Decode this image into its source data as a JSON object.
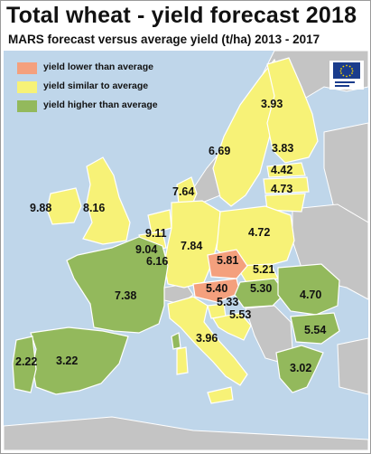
{
  "header": {
    "title": "Total wheat - yield forecast 2018",
    "subtitle": "MARS forecast versus average yield (t/ha) 2013 - 2017"
  },
  "legend": [
    {
      "label": "yield lower than average",
      "color": "#f4a07d"
    },
    {
      "label": "yield similar to average",
      "color": "#f7f277"
    },
    {
      "label": "yield higher than average",
      "color": "#93b95c"
    }
  ],
  "colors": {
    "sea": "#bfd6ea",
    "non_eu": "#c4c4c4",
    "border": "#ffffff"
  },
  "logo": {
    "icon": "eu-flag-icon",
    "text": "European Commission"
  },
  "map_values": [
    {
      "value": "3.93",
      "class": "similar"
    },
    {
      "value": "6.69",
      "class": "similar"
    },
    {
      "value": "3.83",
      "class": "similar"
    },
    {
      "value": "4.42",
      "class": "similar"
    },
    {
      "value": "4.73",
      "class": "similar"
    },
    {
      "value": "7.64",
      "class": "similar"
    },
    {
      "value": "9.88",
      "class": "similar"
    },
    {
      "value": "8.16",
      "class": "similar"
    },
    {
      "value": "4.72",
      "class": "similar"
    },
    {
      "value": "9.11",
      "class": "similar"
    },
    {
      "value": "9.04",
      "class": "similar"
    },
    {
      "value": "7.84",
      "class": "similar"
    },
    {
      "value": "6.16",
      "class": "similar"
    },
    {
      "value": "5.81",
      "class": "lower"
    },
    {
      "value": "5.21",
      "class": "similar"
    },
    {
      "value": "7.38",
      "class": "higher"
    },
    {
      "value": "5.40",
      "class": "lower"
    },
    {
      "value": "5.30",
      "class": "higher"
    },
    {
      "value": "4.70",
      "class": "higher"
    },
    {
      "value": "5.33",
      "class": "similar"
    },
    {
      "value": "5.53",
      "class": "similar"
    },
    {
      "value": "5.54",
      "class": "higher"
    },
    {
      "value": "3.96",
      "class": "similar"
    },
    {
      "value": "2.22",
      "class": "higher"
    },
    {
      "value": "3.22",
      "class": "higher"
    },
    {
      "value": "3.02",
      "class": "higher"
    }
  ]
}
